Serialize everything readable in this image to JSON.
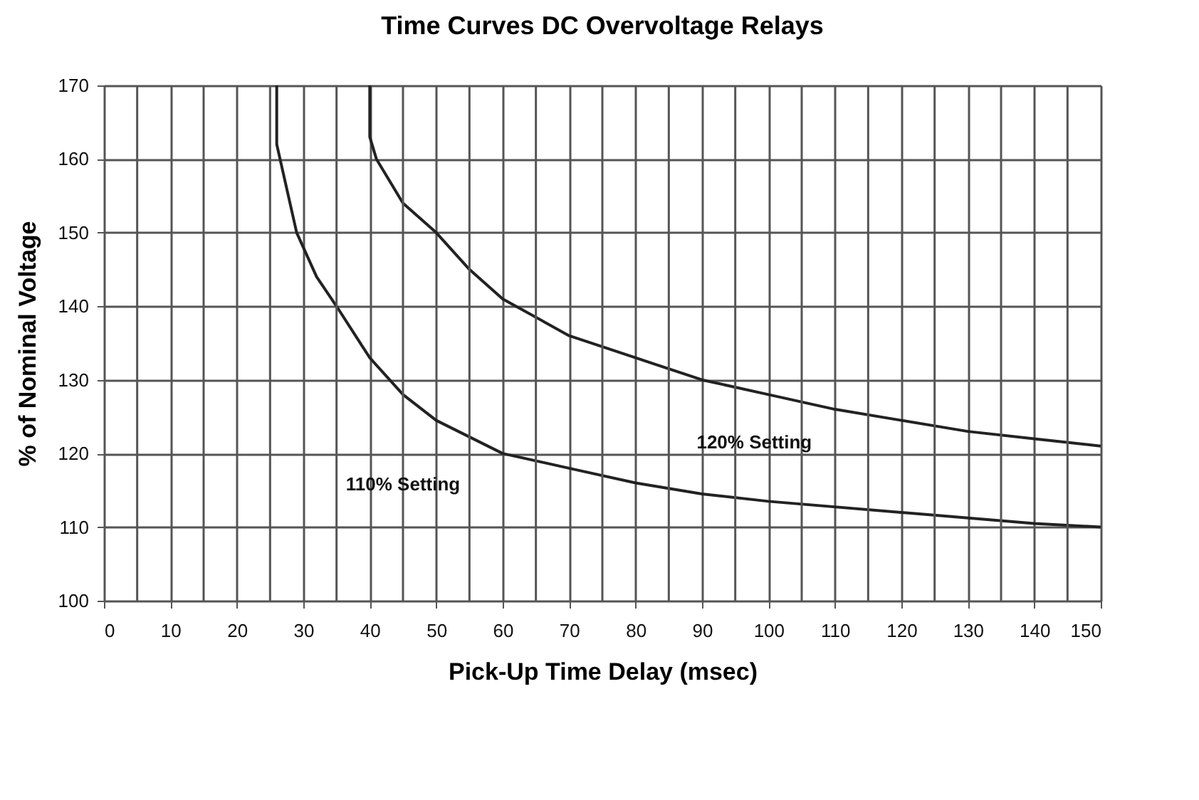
{
  "chart_data": {
    "type": "line",
    "title": "Time Curves DC Overvoltage Relays",
    "xlabel": "Pick-Up Time Delay (msec)",
    "ylabel": "% of Nominal Voltage",
    "xlim": [
      0,
      150
    ],
    "ylim": [
      100,
      170
    ],
    "xticks": [
      0,
      {
        "value": 5,
        "label": null
      },
      10,
      {
        "value": 15,
        "label": null
      },
      20,
      {
        "value": 25,
        "label": null
      },
      30,
      {
        "value": 35,
        "label": null
      },
      40,
      {
        "value": 45,
        "label": null
      },
      50,
      {
        "value": 55,
        "label": null
      },
      60,
      {
        "value": 65,
        "label": null
      },
      70,
      {
        "value": 75,
        "label": null
      },
      80,
      {
        "value": 85,
        "label": null
      },
      90,
      {
        "value": 95,
        "label": null
      },
      100,
      {
        "value": 105,
        "label": null
      },
      110,
      {
        "value": 115,
        "label": null
      },
      120,
      {
        "value": 125,
        "label": null
      },
      130,
      {
        "value": 135,
        "label": null
      },
      140,
      {
        "value": 145,
        "label": null
      },
      150
    ],
    "yticks": [
      100,
      110,
      120,
      130,
      140,
      150,
      160,
      170
    ],
    "grid": true,
    "legend": false,
    "marker": "none",
    "line_style": "solid",
    "series": [
      {
        "name": "110% Setting",
        "color": "#222222",
        "x": [
          26,
          26,
          27,
          29,
          32,
          35,
          40,
          45,
          50,
          60,
          70,
          80,
          90,
          100,
          120,
          140,
          150
        ],
        "values": [
          170,
          162,
          158,
          150,
          144,
          140,
          133,
          128,
          124.5,
          120,
          118,
          116,
          114.5,
          113.5,
          112,
          110.5,
          110
        ]
      },
      {
        "name": "120% Setting",
        "color": "#222222",
        "x": [
          40,
          40,
          41,
          45,
          50,
          55,
          60,
          70,
          80,
          90,
          100,
          110,
          120,
          130,
          140,
          150
        ],
        "values": [
          170,
          163,
          160,
          154,
          150,
          145,
          141,
          136,
          133,
          130,
          128,
          126,
          124.5,
          123,
          122,
          121
        ]
      }
    ]
  }
}
